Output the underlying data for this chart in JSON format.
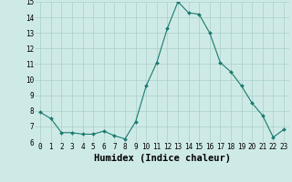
{
  "x": [
    0,
    1,
    2,
    3,
    4,
    5,
    6,
    7,
    8,
    9,
    10,
    11,
    12,
    13,
    14,
    15,
    16,
    17,
    18,
    19,
    20,
    21,
    22,
    23
  ],
  "y": [
    7.9,
    7.5,
    6.6,
    6.6,
    6.5,
    6.5,
    6.7,
    6.4,
    6.2,
    7.3,
    9.6,
    11.1,
    13.3,
    15.0,
    14.3,
    14.2,
    13.0,
    11.1,
    10.5,
    9.6,
    8.5,
    7.7,
    6.3,
    6.8
  ],
  "line_color": "#1a7a6e",
  "marker": "D",
  "marker_size": 2.0,
  "bg_color": "#ceeae7",
  "grid_color": "#aacfcc",
  "xlabel": "Humidex (Indice chaleur)",
  "ylim": [
    6,
    15
  ],
  "xlim_min": -0.5,
  "xlim_max": 23.5,
  "yticks": [
    6,
    7,
    8,
    9,
    10,
    11,
    12,
    13,
    14,
    15
  ],
  "xticks": [
    0,
    1,
    2,
    3,
    4,
    5,
    6,
    7,
    8,
    9,
    10,
    11,
    12,
    13,
    14,
    15,
    16,
    17,
    18,
    19,
    20,
    21,
    22,
    23
  ],
  "tick_label_fontsize": 5.5,
  "xlabel_fontsize": 7.5
}
